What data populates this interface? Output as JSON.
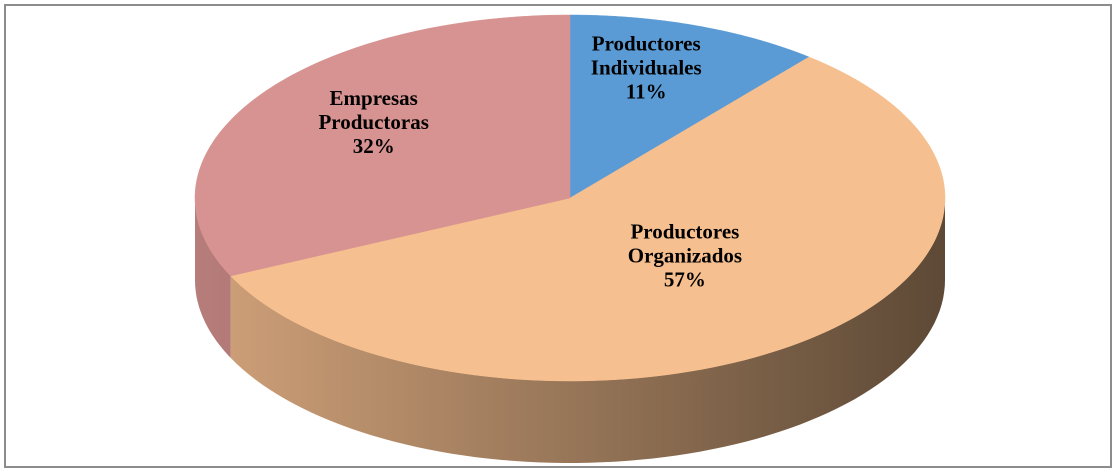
{
  "chart_data": {
    "type": "pie",
    "categories": [
      "Productores Individuales",
      "Productores Organizados",
      "Empresas Productoras"
    ],
    "values": [
      11,
      57,
      32
    ],
    "value_labels": [
      "11%",
      "57%",
      "32%"
    ],
    "colors": [
      "#5b9bd5",
      "#f6bf8f",
      "#d79391"
    ]
  }
}
